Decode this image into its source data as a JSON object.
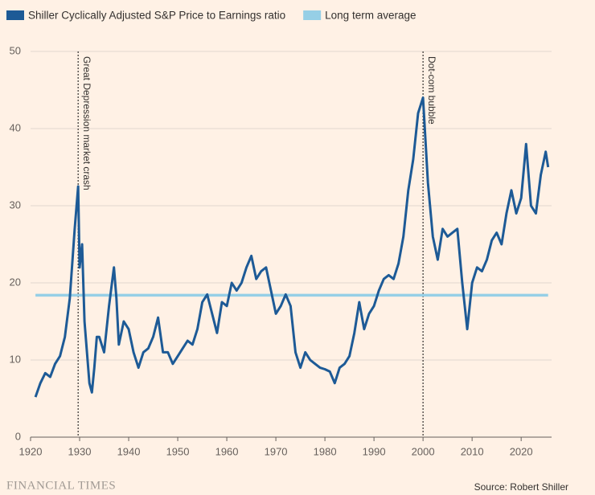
{
  "chart_data": {
    "type": "line",
    "series": [
      {
        "name": "Shiller Cyclically Adjusted S&P Price to Earnings ratio",
        "color": "#1d5a96",
        "x": [
          1921,
          1922,
          1923,
          1924,
          1925,
          1926,
          1927,
          1928,
          1929,
          1929.7,
          1930,
          1930.5,
          1931,
          1932,
          1932.5,
          1933,
          1933.5,
          1934,
          1935,
          1936,
          1937,
          1937.5,
          1938,
          1939,
          1940,
          1941,
          1942,
          1943,
          1944,
          1945,
          1946,
          1947,
          1948,
          1949,
          1950,
          1951,
          1952,
          1953,
          1954,
          1955,
          1956,
          1957,
          1958,
          1959,
          1960,
          1961,
          1962,
          1963,
          1964,
          1965,
          1966,
          1967,
          1968,
          1969,
          1970,
          1971,
          1972,
          1973,
          1974,
          1975,
          1976,
          1977,
          1978,
          1979,
          1980,
          1981,
          1982,
          1983,
          1984,
          1985,
          1986,
          1987,
          1988,
          1989,
          1990,
          1991,
          1992,
          1993,
          1994,
          1995,
          1996,
          1997,
          1998,
          1999,
          2000,
          2001,
          2002,
          2003,
          2004,
          2005,
          2006,
          2007,
          2008,
          2009,
          2010,
          2011,
          2012,
          2013,
          2014,
          2015,
          2016,
          2017,
          2018,
          2019,
          2020,
          2021,
          2022,
          2023,
          2024,
          2025,
          2025.5
        ],
        "values": [
          5.2,
          7,
          8.3,
          7.8,
          9.5,
          10.5,
          13,
          18,
          27,
          32.5,
          22,
          25,
          15,
          7,
          5.8,
          9,
          13,
          13,
          11,
          17,
          22,
          18,
          12,
          15,
          14,
          11,
          9,
          11,
          11.5,
          13,
          15.5,
          11,
          11,
          9.5,
          10.5,
          11.5,
          12.5,
          12,
          14,
          17.5,
          18.5,
          16,
          13.5,
          17.5,
          17,
          20,
          19,
          20,
          22,
          23.5,
          20.5,
          21.5,
          22,
          19,
          16,
          17,
          18.5,
          17,
          11,
          9,
          11,
          10,
          9.5,
          9,
          8.8,
          8.5,
          7,
          9,
          9.5,
          10.5,
          13.5,
          17.5,
          14,
          16,
          17,
          19,
          20.5,
          21,
          20.5,
          22.5,
          26,
          32,
          36,
          42,
          44,
          33,
          26,
          23,
          27,
          26,
          26.5,
          27,
          20,
          14,
          20,
          22,
          21.5,
          23,
          25.5,
          26.5,
          25,
          29,
          32,
          29,
          31,
          38,
          30,
          29,
          34,
          37,
          35
        ]
      },
      {
        "name": "Long term average",
        "color": "#96cfe6",
        "x": [
          1921,
          2025.5
        ],
        "values": [
          18.4,
          18.4
        ]
      }
    ],
    "annotations": [
      {
        "x": 1929.7,
        "label": "Great Depression market crash"
      },
      {
        "x": 2000,
        "label": "Dot-com bubble"
      }
    ],
    "xlim": [
      1920,
      2026.2
    ],
    "xticks": [
      1920,
      1930,
      1940,
      1950,
      1960,
      1970,
      1980,
      1990,
      2000,
      2010,
      2020
    ],
    "ylim": [
      0,
      50
    ],
    "yticks": [
      0,
      10,
      20,
      30,
      40,
      50
    ],
    "grid": true,
    "footer": "FINANCIAL TIMES",
    "source": "Source: Robert Shiller"
  }
}
